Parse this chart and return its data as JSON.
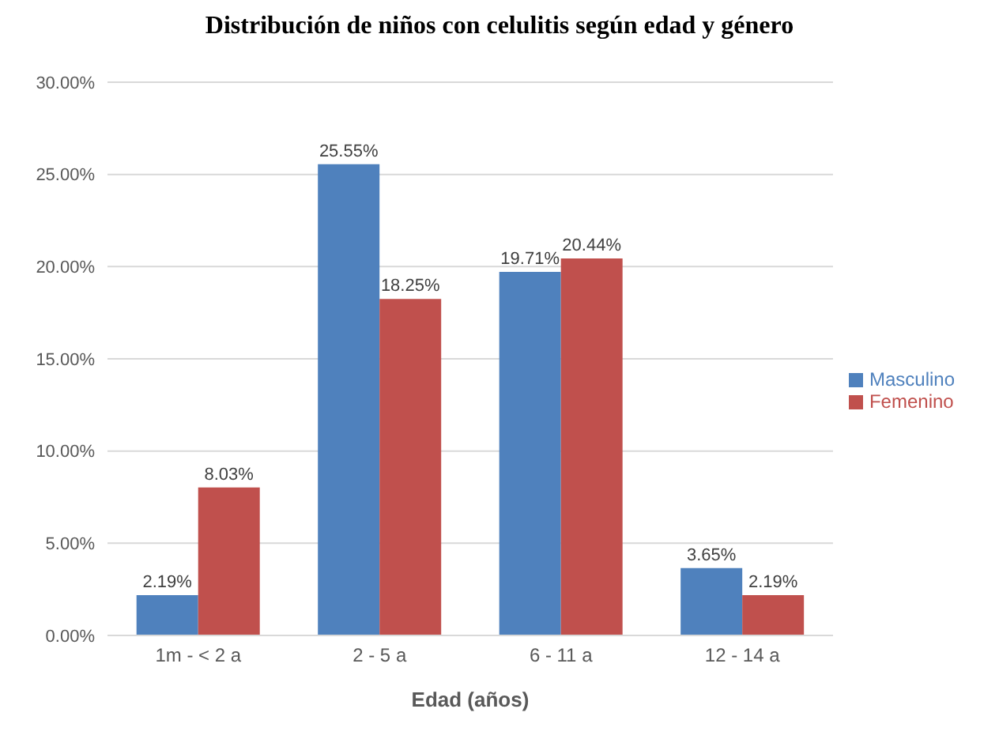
{
  "chart_data": {
    "type": "bar",
    "title": "Distribución de niños con celulitis según edad y género",
    "xlabel": "Edad (años)",
    "categories": [
      "1m - < 2 a",
      "2 - 5 a",
      "6 - 11 a",
      "12 - 14 a"
    ],
    "series": [
      {
        "name": "Masculino",
        "color": "#4f81bd",
        "values": [
          2.19,
          25.55,
          19.71,
          3.65
        ],
        "value_labels": [
          "2.19%",
          "25.55%",
          "19.71%",
          "3.65%"
        ]
      },
      {
        "name": "Femenino",
        "color": "#c0504d",
        "values": [
          8.03,
          18.25,
          20.44,
          2.19
        ],
        "value_labels": [
          "8.03%",
          "18.25%",
          "20.44%",
          "2.19%"
        ]
      }
    ],
    "ylim": [
      0,
      30
    ],
    "yticks": [
      {
        "value": 0,
        "label": "0.00%"
      },
      {
        "value": 5,
        "label": "5.00%"
      },
      {
        "value": 10,
        "label": "10.00%"
      },
      {
        "value": 15,
        "label": "15.00%"
      },
      {
        "value": 20,
        "label": "20.00%"
      },
      {
        "value": 25,
        "label": "25.00%"
      },
      {
        "value": 30,
        "label": "30.00%"
      }
    ],
    "grid": "y",
    "legend": "right"
  }
}
